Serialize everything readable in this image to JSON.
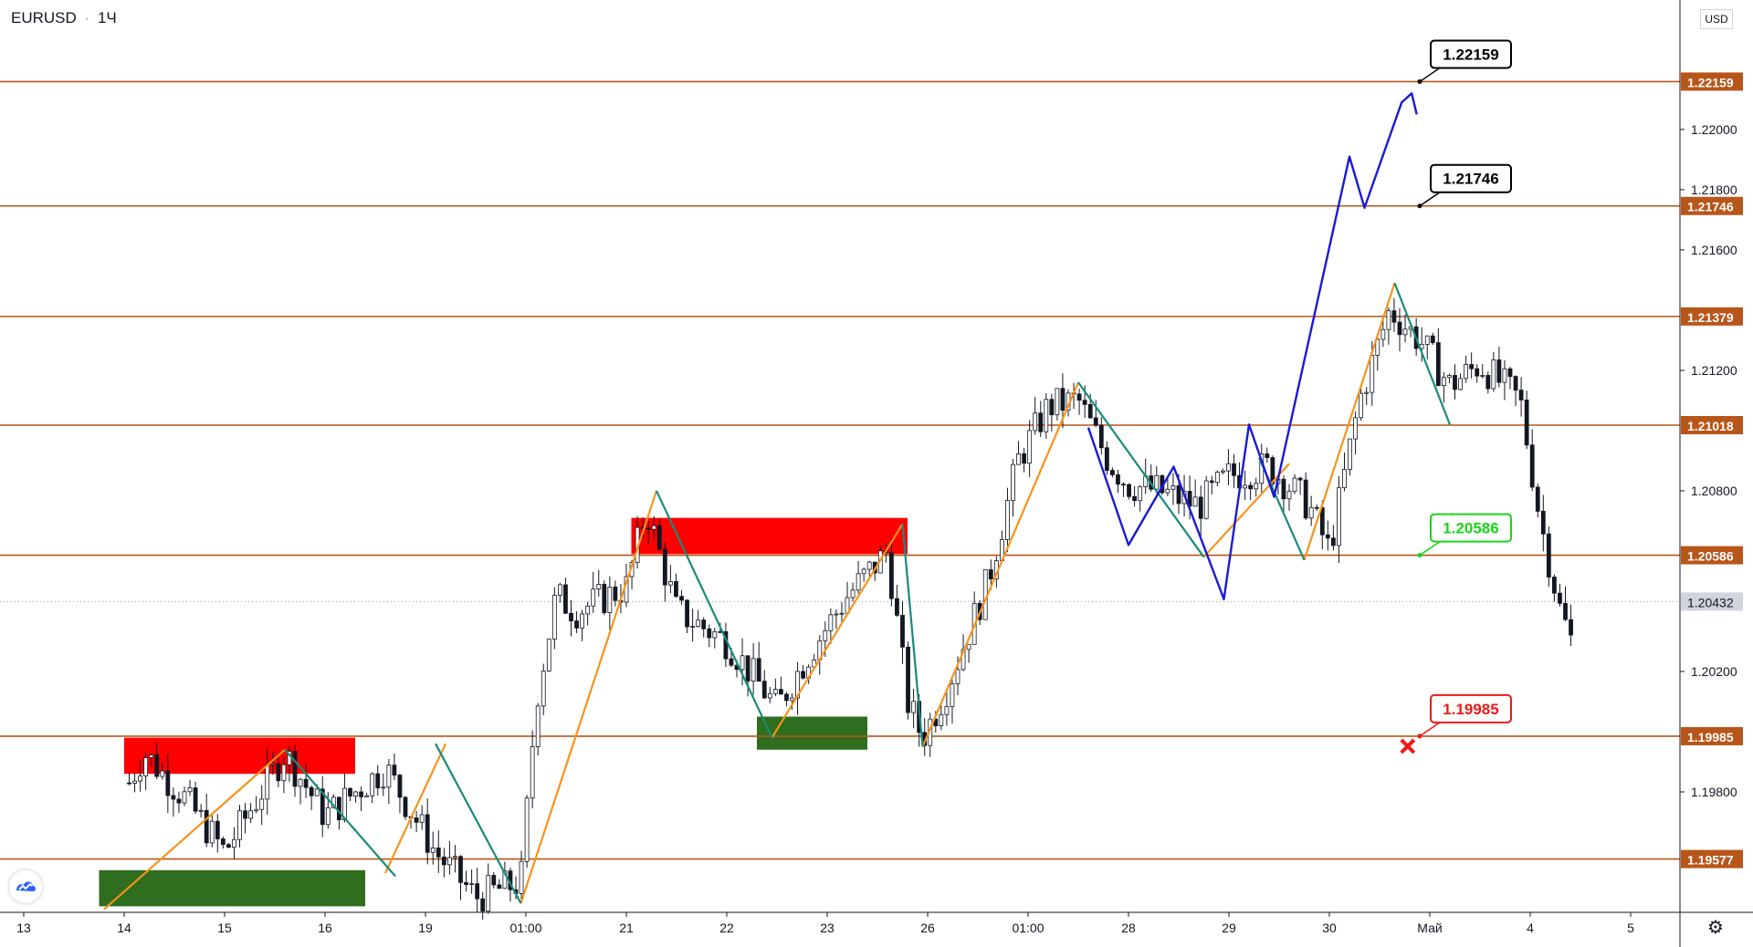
{
  "header": {
    "symbol": "EURUSD",
    "interval": "1Ч",
    "currency": "USD"
  },
  "colors": {
    "level_line": "#b8561a",
    "level_tag_bg": "#b8561a",
    "last_price_bg": "#d1d4dc",
    "wave_orange": "#f7931a",
    "wave_teal": "#1a8a7a",
    "projection_blue": "#1a1ad6",
    "supply_zone": "#ff0000",
    "demand_zone": "#2e6e1e",
    "target_label_border": "#000000",
    "entry_label": "#17d617",
    "stop_label": "#f01818"
  },
  "icons": [
    "tradingview-logo-icon",
    "settings-gear-icon",
    "stop-cross-icon"
  ],
  "chart_data": {
    "type": "candlestick",
    "symbol": "EURUSD",
    "timeframe": "1H",
    "ylim": [
      1.194,
      1.2243
    ],
    "y_ticks": [
      "1.22000",
      "1.21800",
      "1.21600",
      "1.21200",
      "1.20800",
      "1.20200",
      "1.19800"
    ],
    "x_ticks": [
      "13",
      "14",
      "15",
      "16",
      "19",
      "01:00",
      "21",
      "22",
      "23",
      "26",
      "01:00",
      "28",
      "29",
      "30",
      "Май",
      "4",
      "5"
    ],
    "last_price": "1.20432",
    "levels": [
      {
        "value": 1.22159,
        "label": "1.22159"
      },
      {
        "value": 1.21746,
        "label": "1.21746"
      },
      {
        "value": 1.21379,
        "label": "1.21379"
      },
      {
        "value": 1.21018,
        "label": "1.21018"
      },
      {
        "value": 1.20586,
        "label": "1.20586"
      },
      {
        "value": 1.19985,
        "label": "1.19985"
      },
      {
        "value": 1.19577,
        "label": "1.19577"
      }
    ],
    "annotations": {
      "targets": [
        "1.22159",
        "1.21746"
      ],
      "entry": "1.20586",
      "stop": "1.19985"
    },
    "zones": [
      {
        "type": "supply",
        "x": [
          1.0,
          3.3
        ],
        "y": [
          1.1986,
          1.1998
        ]
      },
      {
        "type": "demand",
        "x": [
          0.75,
          3.4
        ],
        "y": [
          1.1942,
          1.1954
        ]
      },
      {
        "type": "supply",
        "x": [
          6.05,
          8.8
        ],
        "y": [
          1.2059,
          1.2071
        ]
      },
      {
        "type": "demand",
        "x": [
          7.3,
          8.4
        ],
        "y": [
          1.1994,
          1.2005
        ]
      }
    ],
    "waves_orange": [
      {
        "x": [
          0.8,
          2.6
        ],
        "y": [
          1.1941,
          1.1994
        ]
      },
      {
        "x": [
          3.6,
          4.2
        ],
        "y": [
          1.1953,
          1.1996
        ]
      },
      {
        "x": [
          4.95,
          6.3
        ],
        "y": [
          1.1943,
          1.208
        ]
      },
      {
        "x": [
          7.45,
          8.75
        ],
        "y": [
          1.1998,
          1.2069
        ]
      },
      {
        "x": [
          8.95,
          10.5
        ],
        "y": [
          1.1995,
          1.2116
        ]
      },
      {
        "x": [
          11.75,
          12.6
        ],
        "y": [
          1.2058,
          1.2089
        ]
      },
      {
        "x": [
          12.75,
          13.65
        ],
        "y": [
          1.2057,
          1.2149
        ]
      }
    ],
    "waves_teal": [
      {
        "x": [
          2.6,
          3.7
        ],
        "y": [
          1.1994,
          1.1952
        ]
      },
      {
        "x": [
          4.1,
          4.95
        ],
        "y": [
          1.1996,
          1.1943
        ]
      },
      {
        "x": [
          6.3,
          7.45
        ],
        "y": [
          1.208,
          1.1998
        ]
      },
      {
        "x": [
          8.75,
          8.95
        ],
        "y": [
          1.2069,
          1.1995
        ]
      },
      {
        "x": [
          10.5,
          11.75
        ],
        "y": [
          1.2116,
          1.2058
        ]
      },
      {
        "x": [
          12.3,
          12.75
        ],
        "y": [
          1.2091,
          1.2057
        ]
      },
      {
        "x": [
          13.65,
          14.2
        ],
        "y": [
          1.2149,
          1.2102
        ]
      }
    ],
    "projection_blue": {
      "x": [
        10.6,
        11.0,
        11.45,
        11.95,
        12.2,
        12.45,
        13.2,
        13.35,
        13.72,
        13.82,
        13.87
      ],
      "y": [
        1.2101,
        1.2062,
        1.2088,
        1.2044,
        1.2102,
        1.2078,
        1.2191,
        1.2174,
        1.2209,
        1.2212,
        1.2205
      ]
    },
    "price_path": {
      "x": [
        0.0,
        0.6,
        0.9,
        1.2,
        1.6,
        2.0,
        2.6,
        3.0,
        3.6,
        4.1,
        4.5,
        4.95,
        5.1,
        5.3,
        5.5,
        6.0,
        6.2,
        6.5,
        7.0,
        7.5,
        7.8,
        8.2,
        8.6,
        8.8,
        8.95,
        9.2,
        9.6,
        9.9,
        10.2,
        10.5,
        10.8,
        11.0,
        11.3,
        11.7,
        12.0,
        12.4,
        12.8,
        13.0,
        13.3,
        13.6,
        13.9,
        14.2,
        14.5,
        14.9,
        15.1,
        15.3,
        15.5,
        15.8,
        16.0,
        16.2
      ]
    }
  }
}
